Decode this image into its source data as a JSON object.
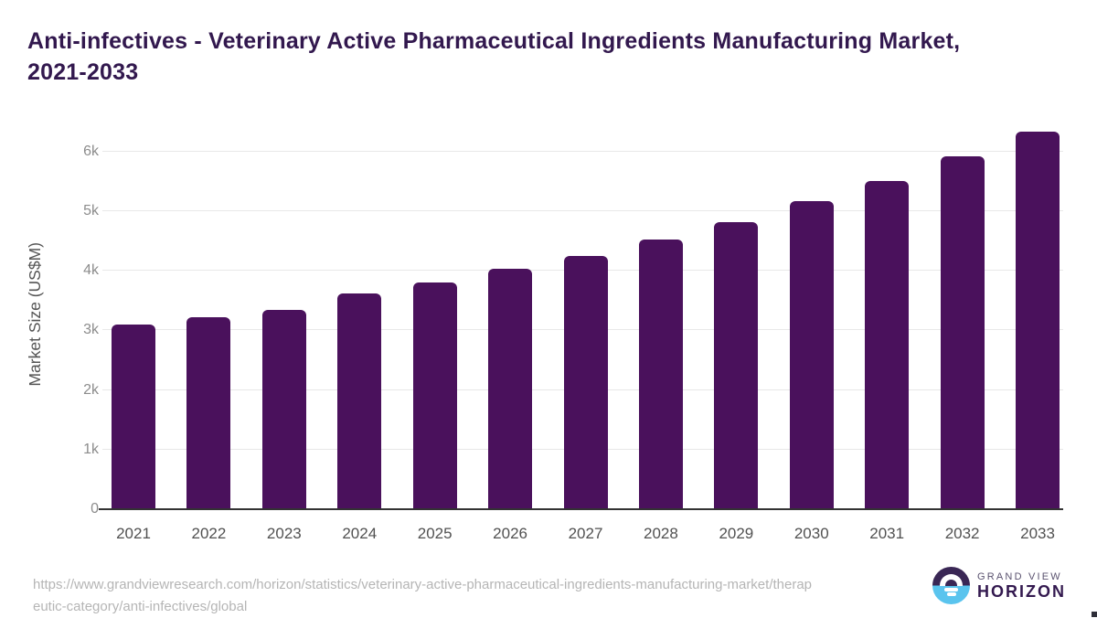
{
  "header": {
    "title_line1": "Anti-infectives - Veterinary Active Pharmaceutical Ingredients Manufacturing Market,",
    "title_line2": "2021-2033"
  },
  "chart_data": {
    "type": "bar",
    "title": "Anti-infectives - Veterinary Active Pharmaceutical Ingredients Manufacturing Market, 2021-2033",
    "xlabel": "",
    "ylabel": "Market Size (US$M)",
    "categories": [
      "2021",
      "2022",
      "2023",
      "2024",
      "2025",
      "2026",
      "2027",
      "2028",
      "2029",
      "2030",
      "2031",
      "2032",
      "2033"
    ],
    "values": [
      3100,
      3220,
      3340,
      3620,
      3810,
      4030,
      4250,
      4530,
      4820,
      5170,
      5510,
      5920,
      6340
    ],
    "unit": "US$M",
    "y_tick_labels": [
      "0",
      "1k",
      "2k",
      "3k",
      "4k",
      "5k",
      "6k"
    ],
    "ylim": [
      0,
      6550
    ],
    "grid": "horizontal",
    "legend": "none",
    "bar_color": "#4a115c"
  },
  "footer": {
    "source_url_line1": "https://www.grandviewresearch.com/horizon/statistics/veterinary-active-pharmaceutical-ingredients-manufacturing-market/therap",
    "source_url_line2": "eutic-category/anti-infectives/global",
    "logo": {
      "icon": "sunrise-horizon-icon",
      "line1": "GRAND VIEW",
      "line2": "HORIZON"
    }
  },
  "colors": {
    "bar": "#4a115c",
    "title_text": "#32184e",
    "gridline": "#e8e8e8",
    "axis_line": "#333333",
    "y_tick_text": "#8c8c8c",
    "x_tick_text": "#515151",
    "url_text": "#b5b5b5",
    "logo_dark": "#3a2755",
    "logo_blue": "#5ac4ee"
  }
}
